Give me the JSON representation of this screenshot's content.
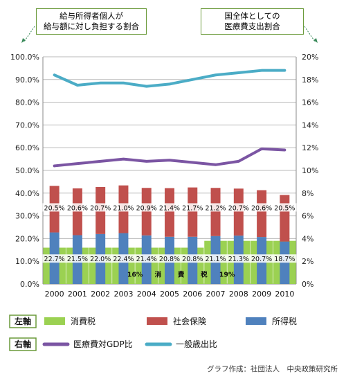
{
  "callouts": {
    "left": {
      "line1": "給与所得者個人が",
      "line2": "給与額に対し負担する割合"
    },
    "right": {
      "line1": "国全体としての",
      "line2": "医療費支出割合"
    }
  },
  "credit": "グラフ作成：社団法人　中央政策研究所",
  "chart_data": {
    "type": "bar",
    "categories": [
      "2000",
      "2001",
      "2002",
      "2003",
      "2004",
      "2005",
      "2006",
      "2007",
      "2008",
      "2009",
      "2010"
    ],
    "left_axis": {
      "ticks": [
        "0.0%",
        "10.0%",
        "20.0%",
        "30.0%",
        "40.0%",
        "50.0%",
        "60.0%",
        "70.0%",
        "80.0%",
        "90.0%",
        "100.0%"
      ],
      "ylim": [
        0,
        100
      ]
    },
    "right_axis": {
      "ticks": [
        "0%",
        "2%",
        "4%",
        "6%",
        "8%",
        "10%",
        "12%",
        "14%",
        "16%",
        "18%",
        "20%"
      ],
      "ylim": [
        0,
        20
      ]
    },
    "bars": {
      "income_tax": {
        "name": "所得税",
        "color": "#4f81bd",
        "values": [
          22.7,
          21.5,
          22.0,
          22.4,
          21.4,
          20.8,
          20.8,
          21.1,
          21.3,
          20.7,
          18.7
        ]
      },
      "social_insurance": {
        "name": "社会保険",
        "color": "#c0504d",
        "values": [
          20.5,
          20.6,
          20.7,
          21.0,
          20.9,
          21.4,
          21.7,
          21.2,
          20.7,
          20.6,
          20.5
        ]
      },
      "consumption_tax": {
        "name": "消費税",
        "color": "#9bd152",
        "values": [
          16,
          16,
          16,
          16,
          16,
          16,
          16,
          19,
          19,
          19,
          19
        ]
      }
    },
    "income_labels": [
      "22.7%",
      "21.5%",
      "22.0%",
      "22.4%",
      "21.4%",
      "20.8%",
      "20.8%",
      "21.1%",
      "21.3%",
      "20.7%",
      "18.7%"
    ],
    "social_labels": [
      "20.5%",
      "20.6%",
      "20.7%",
      "21.0%",
      "20.9%",
      "21.4%",
      "21.7%",
      "21.2%",
      "20.7%",
      "20.6%",
      "20.5%"
    ],
    "consumption_annotations": {
      "val16": "16%",
      "text": [
        "消",
        "費",
        "税"
      ],
      "val19": "19%"
    },
    "lines": {
      "medical_gdp": {
        "name": "医療費対GDP比",
        "color": "#7b55a3",
        "values": [
          10.4,
          10.6,
          10.8,
          11.0,
          10.8,
          10.9,
          10.7,
          10.5,
          10.8,
          11.9,
          11.8
        ]
      },
      "general_expenditure": {
        "name": "一般歳出比",
        "color": "#4bacc6",
        "values": [
          18.4,
          17.5,
          17.7,
          17.7,
          17.4,
          17.6,
          18.0,
          18.4,
          18.6,
          18.8,
          18.8
        ]
      }
    },
    "legend": {
      "left_axis_label": "左軸",
      "right_axis_label": "右軸"
    },
    "grid": true
  }
}
